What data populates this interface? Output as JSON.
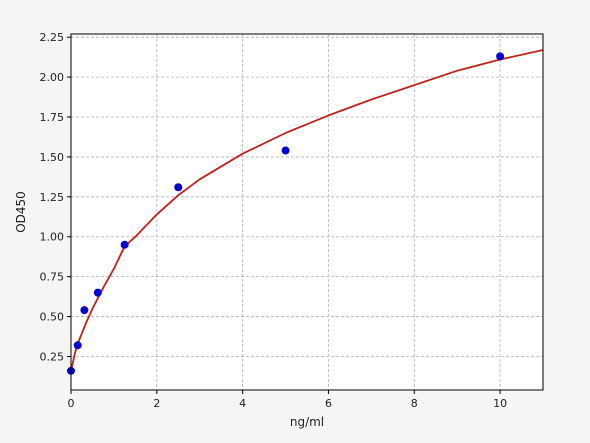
{
  "chart_data": {
    "type": "scatter",
    "title": "",
    "xlabel": "ng/ml",
    "ylabel": "OD450",
    "xlim": [
      0,
      11
    ],
    "ylim": [
      0.04,
      2.27
    ],
    "grid": true,
    "x_ticks": [
      0,
      2,
      4,
      6,
      8,
      10
    ],
    "x_tick_labels": [
      "0",
      "2",
      "4",
      "6",
      "8",
      "10"
    ],
    "y_ticks": [
      0.25,
      0.5,
      0.75,
      1.0,
      1.25,
      1.5,
      1.75,
      2.0,
      2.25
    ],
    "y_tick_labels": [
      "0.25",
      "0.50",
      "0.75",
      "1.00",
      "1.25",
      "1.50",
      "1.75",
      "2.00",
      "2.25"
    ],
    "series": [
      {
        "kind": "points",
        "color": "#0000cc",
        "x": [
          0,
          0.156,
          0.312,
          0.625,
          1.25,
          2.5,
          5,
          10
        ],
        "y": [
          0.16,
          0.32,
          0.54,
          0.65,
          0.95,
          1.31,
          1.54,
          2.13
        ]
      },
      {
        "kind": "fit-curve",
        "color": "#c0221b",
        "x": [
          0,
          0.1,
          0.2,
          0.35,
          0.5,
          0.75,
          1.0,
          1.25,
          1.5,
          2.0,
          2.5,
          3.0,
          4.0,
          5.0,
          6.0,
          7.0,
          8.0,
          9.0,
          10.0,
          11.0
        ],
        "y": [
          0.16,
          0.28,
          0.36,
          0.46,
          0.55,
          0.68,
          0.8,
          0.94,
          1.0,
          1.14,
          1.26,
          1.36,
          1.52,
          1.65,
          1.76,
          1.86,
          1.95,
          2.04,
          2.11,
          2.17
        ]
      }
    ]
  }
}
